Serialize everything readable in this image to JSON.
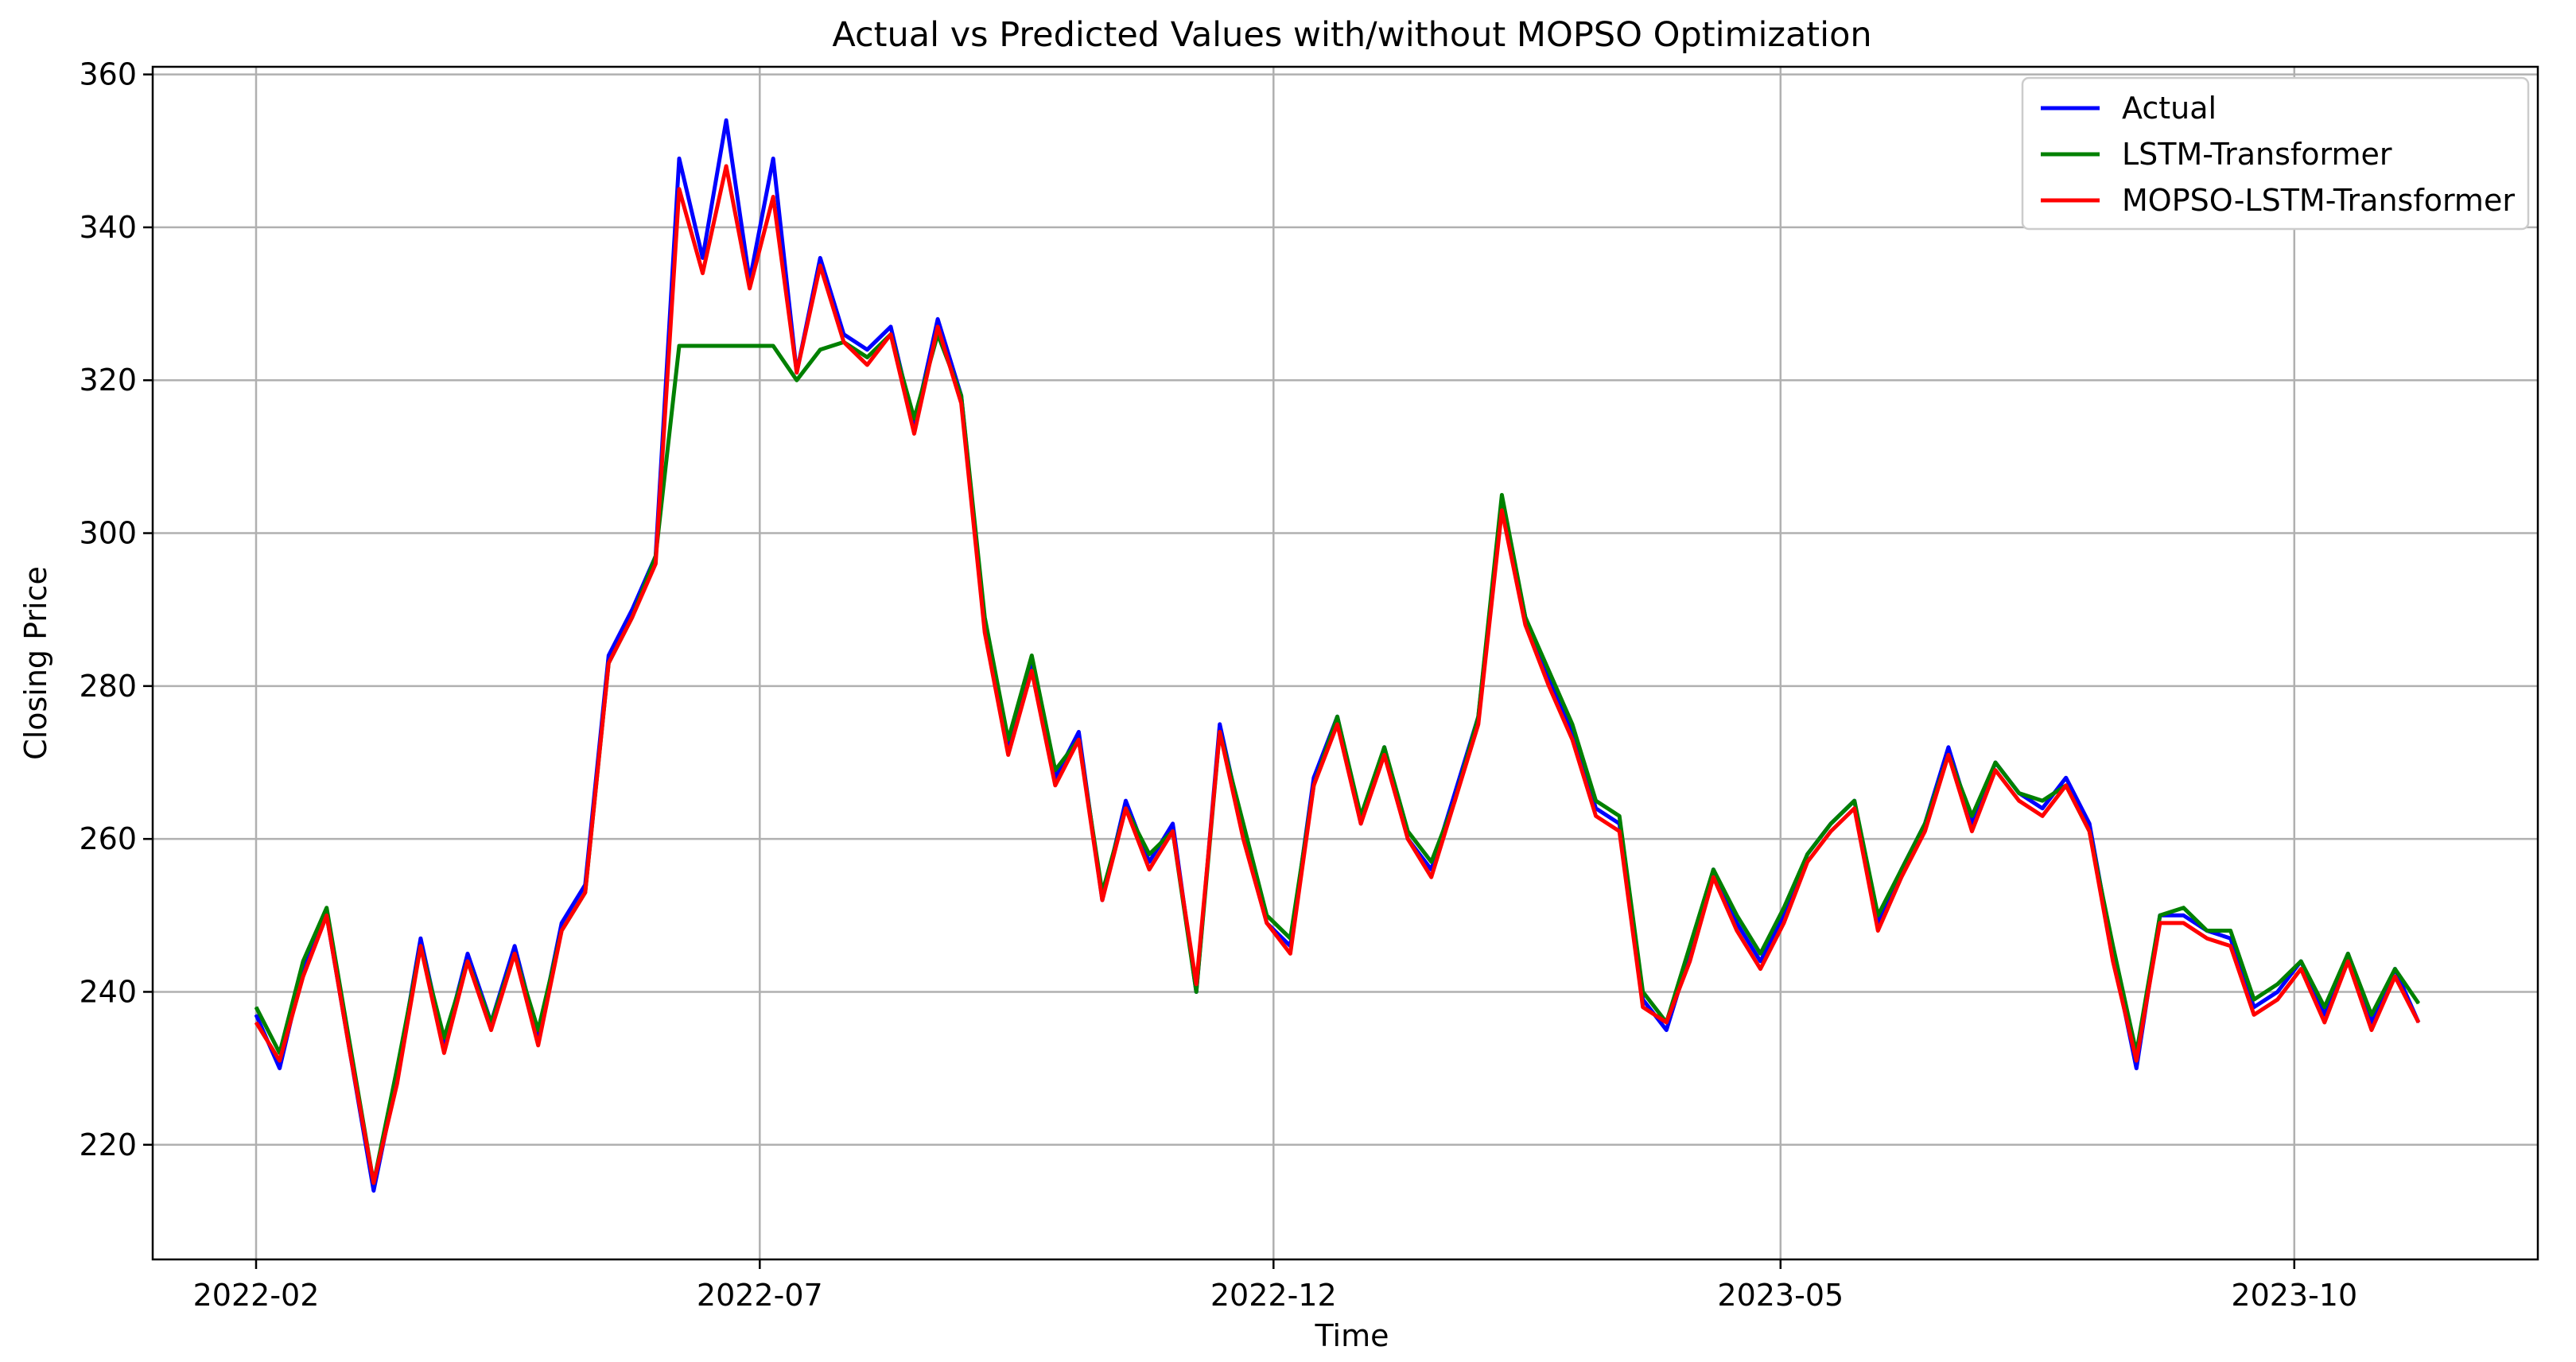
{
  "chart_data": {
    "type": "line",
    "title": "Actual vs Predicted Values with/without MOPSO Optimization",
    "xlabel": "Time",
    "ylabel": "Closing Price",
    "x_tick_labels": [
      "2022-02",
      "2022-07",
      "2022-12",
      "2023-05",
      "2023-10"
    ],
    "y_ticks": [
      220,
      240,
      260,
      280,
      300,
      320,
      340,
      360
    ],
    "ylim": [
      205,
      361
    ],
    "grid": true,
    "legend_position": "top-right",
    "colors": {
      "Actual": "#0000ff",
      "LSTM-Transformer": "#008000",
      "MOPSO-LSTM-Transformer": "#ff0000"
    },
    "series": [
      {
        "name": "Actual",
        "x": [
          "2022-02-01",
          "2022-02-08",
          "2022-02-15",
          "2022-02-22",
          "2022-03-01",
          "2022-03-08",
          "2022-03-15",
          "2022-03-22",
          "2022-03-29",
          "2022-04-05",
          "2022-04-12",
          "2022-04-19",
          "2022-04-26",
          "2022-05-03",
          "2022-05-10",
          "2022-05-17",
          "2022-05-24",
          "2022-05-31",
          "2022-06-07",
          "2022-06-14",
          "2022-06-21",
          "2022-06-28",
          "2022-07-05",
          "2022-07-12",
          "2022-07-19",
          "2022-07-26",
          "2022-08-02",
          "2022-08-09",
          "2022-08-16",
          "2022-08-23",
          "2022-08-30",
          "2022-09-06",
          "2022-09-13",
          "2022-09-20",
          "2022-09-27",
          "2022-10-04",
          "2022-10-11",
          "2022-10-18",
          "2022-10-25",
          "2022-11-01",
          "2022-11-08",
          "2022-11-15",
          "2022-11-22",
          "2022-11-29",
          "2022-12-06",
          "2022-12-13",
          "2022-12-20",
          "2022-12-27",
          "2023-01-03",
          "2023-01-10",
          "2023-01-17",
          "2023-01-24",
          "2023-01-31",
          "2023-02-07",
          "2023-02-14",
          "2023-02-21",
          "2023-02-28",
          "2023-03-07",
          "2023-03-14",
          "2023-03-21",
          "2023-03-28",
          "2023-04-04",
          "2023-04-11",
          "2023-04-18",
          "2023-04-25",
          "2023-05-02",
          "2023-05-09",
          "2023-05-16",
          "2023-05-23",
          "2023-05-30",
          "2023-06-06",
          "2023-06-13",
          "2023-06-20",
          "2023-06-27",
          "2023-07-04",
          "2023-07-11",
          "2023-07-18",
          "2023-07-25",
          "2023-08-01",
          "2023-08-08",
          "2023-08-15",
          "2023-08-22",
          "2023-08-29",
          "2023-09-05",
          "2023-09-12",
          "2023-09-19",
          "2023-09-26",
          "2023-10-03",
          "2023-10-10",
          "2023-10-17",
          "2023-10-24",
          "2023-10-31",
          "2023-11-07"
        ],
        "values": [
          237,
          230,
          243,
          250,
          232,
          214,
          229,
          247,
          233,
          245,
          236,
          246,
          234,
          249,
          254,
          284,
          290,
          297,
          349,
          336,
          354,
          333,
          349,
          321,
          336,
          326,
          324,
          327,
          314,
          328,
          318,
          288,
          272,
          283,
          268,
          274,
          252,
          265,
          257,
          262,
          240,
          275,
          261,
          249,
          246,
          268,
          276,
          262,
          272,
          260,
          256,
          266,
          276,
          304,
          289,
          281,
          274,
          264,
          262,
          239,
          235,
          245,
          256,
          249,
          244,
          250,
          258,
          262,
          265,
          249,
          256,
          262,
          272,
          262,
          270,
          266,
          264,
          268,
          262,
          245,
          230,
          250,
          250,
          248,
          247,
          238,
          240,
          244,
          237,
          245,
          236,
          243,
          236
        ]
      },
      {
        "name": "LSTM-Transformer",
        "x": [
          "2022-02-01",
          "2022-02-08",
          "2022-02-15",
          "2022-02-22",
          "2022-03-01",
          "2022-03-08",
          "2022-03-15",
          "2022-03-22",
          "2022-03-29",
          "2022-04-05",
          "2022-04-12",
          "2022-04-19",
          "2022-04-26",
          "2022-05-03",
          "2022-05-10",
          "2022-05-17",
          "2022-05-24",
          "2022-05-31",
          "2022-06-07",
          "2022-06-14",
          "2022-06-21",
          "2022-06-28",
          "2022-07-05",
          "2022-07-12",
          "2022-07-19",
          "2022-07-26",
          "2022-08-02",
          "2022-08-09",
          "2022-08-16",
          "2022-08-23",
          "2022-08-30",
          "2022-09-06",
          "2022-09-13",
          "2022-09-20",
          "2022-09-27",
          "2022-10-04",
          "2022-10-11",
          "2022-10-18",
          "2022-10-25",
          "2022-11-01",
          "2022-11-08",
          "2022-11-15",
          "2022-11-22",
          "2022-11-29",
          "2022-12-06",
          "2022-12-13",
          "2022-12-20",
          "2022-12-27",
          "2023-01-03",
          "2023-01-10",
          "2023-01-17",
          "2023-01-24",
          "2023-01-31",
          "2023-02-07",
          "2023-02-14",
          "2023-02-21",
          "2023-02-28",
          "2023-03-07",
          "2023-03-14",
          "2023-03-21",
          "2023-03-28",
          "2023-04-04",
          "2023-04-11",
          "2023-04-18",
          "2023-04-25",
          "2023-05-02",
          "2023-05-09",
          "2023-05-16",
          "2023-05-23",
          "2023-05-30",
          "2023-06-06",
          "2023-06-13",
          "2023-06-20",
          "2023-06-27",
          "2023-07-04",
          "2023-07-11",
          "2023-07-18",
          "2023-07-25",
          "2023-08-01",
          "2023-08-08",
          "2023-08-15",
          "2023-08-22",
          "2023-08-29",
          "2023-09-05",
          "2023-09-12",
          "2023-09-19",
          "2023-09-26",
          "2023-10-03",
          "2023-10-10",
          "2023-10-17",
          "2023-10-24",
          "2023-10-31",
          "2023-11-07"
        ],
        "values": [
          238,
          232,
          244,
          251,
          233,
          215,
          230,
          246,
          234,
          244,
          236,
          245,
          235,
          248,
          253,
          283,
          289,
          297,
          324.5,
          324.5,
          324.5,
          324.5,
          324.5,
          320,
          324,
          325,
          323,
          326,
          315,
          326,
          318,
          289,
          273,
          284,
          269,
          273,
          253,
          264,
          258,
          261,
          240,
          274,
          262,
          250,
          247,
          267,
          276,
          263,
          272,
          261,
          257,
          265,
          276,
          305,
          289,
          282,
          275,
          265,
          263,
          240,
          236,
          246,
          256,
          250,
          245,
          251,
          258,
          262,
          265,
          250,
          256,
          262,
          271,
          263,
          270,
          266,
          265,
          267,
          261,
          246,
          232,
          250,
          251,
          248,
          248,
          239,
          241,
          244,
          238,
          245,
          237,
          243,
          238.5
        ]
      },
      {
        "name": "MOPSO-LSTM-Transformer",
        "x": [
          "2022-02-01",
          "2022-02-08",
          "2022-02-15",
          "2022-02-22",
          "2022-03-01",
          "2022-03-08",
          "2022-03-15",
          "2022-03-22",
          "2022-03-29",
          "2022-04-05",
          "2022-04-12",
          "2022-04-19",
          "2022-04-26",
          "2022-05-03",
          "2022-05-10",
          "2022-05-17",
          "2022-05-24",
          "2022-05-31",
          "2022-06-07",
          "2022-06-14",
          "2022-06-21",
          "2022-06-28",
          "2022-07-05",
          "2022-07-12",
          "2022-07-19",
          "2022-07-26",
          "2022-08-02",
          "2022-08-09",
          "2022-08-16",
          "2022-08-23",
          "2022-08-30",
          "2022-09-06",
          "2022-09-13",
          "2022-09-20",
          "2022-09-27",
          "2022-10-04",
          "2022-10-11",
          "2022-10-18",
          "2022-10-25",
          "2022-11-01",
          "2022-11-08",
          "2022-11-15",
          "2022-11-22",
          "2022-11-29",
          "2022-12-06",
          "2022-12-13",
          "2022-12-20",
          "2022-12-27",
          "2023-01-03",
          "2023-01-10",
          "2023-01-17",
          "2023-01-24",
          "2023-01-31",
          "2023-02-07",
          "2023-02-14",
          "2023-02-21",
          "2023-02-28",
          "2023-03-07",
          "2023-03-14",
          "2023-03-21",
          "2023-03-28",
          "2023-04-04",
          "2023-04-11",
          "2023-04-18",
          "2023-04-25",
          "2023-05-02",
          "2023-05-09",
          "2023-05-16",
          "2023-05-23",
          "2023-05-30",
          "2023-06-06",
          "2023-06-13",
          "2023-06-20",
          "2023-06-27",
          "2023-07-04",
          "2023-07-11",
          "2023-07-18",
          "2023-07-25",
          "2023-08-01",
          "2023-08-08",
          "2023-08-15",
          "2023-08-22",
          "2023-08-29",
          "2023-09-05",
          "2023-09-12",
          "2023-09-19",
          "2023-09-26",
          "2023-10-03",
          "2023-10-10",
          "2023-10-17",
          "2023-10-24",
          "2023-10-31",
          "2023-11-07"
        ],
        "values": [
          236,
          231,
          242,
          250,
          232,
          215,
          228,
          246,
          232,
          244,
          235,
          245,
          233,
          248,
          253,
          283,
          289,
          296,
          345,
          334,
          348,
          332,
          344,
          321,
          335,
          325,
          322,
          326,
          313,
          327,
          317,
          287,
          271,
          282,
          267,
          273,
          252,
          264,
          256,
          261,
          241,
          274,
          260,
          249,
          245,
          267,
          275,
          262,
          271,
          260,
          255,
          265,
          275,
          303,
          288,
          280,
          273,
          263,
          261,
          238,
          236,
          244,
          255,
          248,
          243,
          249,
          257,
          261,
          264,
          248,
          255,
          261,
          271,
          261,
          269,
          265,
          263,
          267,
          261,
          244,
          231,
          249,
          249,
          247,
          246,
          237,
          239,
          243,
          236,
          244,
          235,
          242,
          236
        ]
      }
    ]
  }
}
